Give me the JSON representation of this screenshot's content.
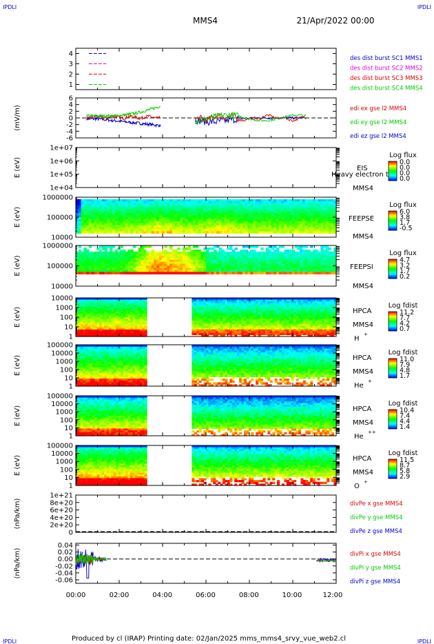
{
  "header": {
    "corner_left": "IPDLI",
    "corner_right": "IPDLI",
    "title": "MMS4",
    "date": "21/Apr/2022 00:00"
  },
  "footer": {
    "corner_left": "IPDLI",
    "corner_right": "IPDLI",
    "credit": "Produced by cl (IRAP)   Printing date: 02/Jan/2025   mms_mms4_srvy_vue_web2.cl"
  },
  "time_axis": {
    "range_hours": [
      0,
      12
    ],
    "tick_labels": [
      "00:00",
      "02:00",
      "04:00",
      "06:00",
      "08:00",
      "10:00",
      "12:00"
    ]
  },
  "colors": {
    "sc1": "#0000cc",
    "sc2": "#dd00dd",
    "sc3": "#dd0000",
    "sc4": "#00cc00",
    "ex": "#dd0000",
    "ey": "#00cc00",
    "ez": "#0000cc"
  },
  "chart_data": [
    {
      "type": "line",
      "panel": "burst",
      "yticks": [
        "4",
        "3",
        "2",
        "1"
      ],
      "ylim": [
        0.5,
        4.5
      ],
      "series": [
        {
          "name": "des dist burst SC1 MMS1",
          "level": 4,
          "color": "#0000cc",
          "intervals": [
            [
              0.6,
              1.4
            ]
          ]
        },
        {
          "name": "des dist burst SC2 MMS2",
          "level": 3,
          "color": "#dd00dd",
          "intervals": [
            [
              0.6,
              1.4
            ]
          ]
        },
        {
          "name": "des dist burst SC3 MMS3",
          "level": 2,
          "color": "#dd0000",
          "intervals": [
            [
              0.6,
              1.4
            ]
          ]
        },
        {
          "name": "des dist burst SC4 MMS4",
          "level": 1,
          "color": "#00cc00",
          "intervals": [
            [
              0.6,
              1.4
            ]
          ]
        }
      ],
      "legend": [
        "des dist burst SC1 MMS1",
        "des dist burst SC2 MMS2",
        "des dist burst SC3 MMS3",
        "des dist burst SC4 MMS4"
      ]
    },
    {
      "type": "line",
      "panel": "edi",
      "ylabel": "(mV/m)",
      "yticks": [
        "6",
        "4",
        "2",
        "0",
        "-2",
        "-4",
        "-6"
      ],
      "ylim": [
        -6,
        6
      ],
      "series": [
        {
          "name": "edi ex gse l2 MMS4",
          "color": "#dd0000"
        },
        {
          "name": "edi ey gse l2 MMS4",
          "color": "#00cc00"
        },
        {
          "name": "edi ez gse l2 MMS4",
          "color": "#0000cc"
        }
      ],
      "data_intervals_hours": [
        [
          0.5,
          3.9
        ],
        [
          5.5,
          10.6
        ]
      ]
    },
    {
      "type": "heatmap",
      "panel": "eis",
      "ylabel": "E (eV)",
      "yticks": [
        "1e+07",
        "1e+06",
        "1e+05",
        "1e+04"
      ],
      "instrument": "EIS",
      "overlay_text": "Heavy electron to",
      "spacecraft": "MMS4",
      "colorbar": {
        "title": "Log flux",
        "ticks": [
          "0.0",
          "0.0",
          "0.0",
          "0.0"
        ]
      },
      "data": "empty"
    },
    {
      "type": "heatmap",
      "panel": "feepse",
      "ylabel": "E (eV)",
      "yticks": [
        "1000000",
        "100000",
        "10000"
      ],
      "instrument": "FEEPSE",
      "spacecraft": "MMS4",
      "colorbar": {
        "title": "Log flux",
        "ticks": [
          "6.0",
          "3.8",
          "1.7",
          "-0.5"
        ]
      },
      "data_intervals_hours": [
        [
          0.0,
          12.0
        ]
      ]
    },
    {
      "type": "heatmap",
      "panel": "feepsi",
      "ylabel": "E (eV)",
      "yticks": [
        "1000000",
        "100000",
        "10000"
      ],
      "instrument": "FEEPSI",
      "spacecraft": "MMS4",
      "colorbar": {
        "title": "Log flux",
        "ticks": [
          "4.7",
          "3.2",
          "1.7",
          "0.2"
        ]
      },
      "data_intervals_hours": [
        [
          0.0,
          12.0
        ]
      ]
    },
    {
      "type": "heatmap",
      "panel": "hpca_h",
      "ylabel": "E (eV)",
      "yticks": [
        "10000",
        "1000",
        "100",
        "10",
        "1"
      ],
      "instrument": "HPCA",
      "spacecraft": "MMS4",
      "species": "H",
      "charge": "+",
      "colorbar": {
        "title": "Log fdist",
        "ticks": [
          "11.2",
          "7.7",
          "4.2",
          "0.7"
        ]
      },
      "data_intervals_hours": [
        [
          0.0,
          3.3
        ],
        [
          5.3,
          12.0
        ]
      ]
    },
    {
      "type": "heatmap",
      "panel": "hpca_he",
      "ylabel": "E (eV)",
      "yticks": [
        "100000",
        "10000",
        "1000",
        "100",
        "10",
        "1"
      ],
      "instrument": "HPCA",
      "spacecraft": "MMS4",
      "species": "He",
      "charge": "+",
      "colorbar": {
        "title": "Log fdist",
        "ticks": [
          "11.0",
          "7.9",
          "4.8",
          "1.7"
        ]
      },
      "data_intervals_hours": [
        [
          0.0,
          3.3
        ],
        [
          5.3,
          12.0
        ]
      ]
    },
    {
      "type": "heatmap",
      "panel": "hpca_hepp",
      "ylabel": "E (eV)",
      "yticks": [
        "100000",
        "10000",
        "1000",
        "100",
        "10",
        "1"
      ],
      "instrument": "HPCA",
      "spacecraft": "MMS4",
      "species": "He",
      "charge": "++",
      "colorbar": {
        "title": "Log fdist",
        "ticks": [
          "10.4",
          "7.4",
          "4.4",
          "1.4"
        ]
      },
      "data_intervals_hours": [
        [
          0.0,
          3.3
        ],
        [
          5.3,
          12.0
        ]
      ]
    },
    {
      "type": "heatmap",
      "panel": "hpca_o",
      "ylabel": "E (eV)",
      "yticks": [
        "100000",
        "10000",
        "1000",
        "100",
        "10",
        "1"
      ],
      "instrument": "HPCA",
      "spacecraft": "MMS4",
      "species": "O",
      "charge": "+",
      "colorbar": {
        "title": "Log fdist",
        "ticks": [
          "11.5",
          "8.7",
          "5.8",
          "2.9"
        ]
      },
      "data_intervals_hours": [
        [
          0.0,
          3.3
        ],
        [
          5.3,
          12.0
        ]
      ]
    },
    {
      "type": "line",
      "panel": "divpe",
      "ylabel": "(nPa/km)",
      "yticks": [
        "1e+21",
        "8e+20",
        "6e+20",
        "4e+20",
        "2e+20",
        "0"
      ],
      "ylim": [
        0,
        1e+21
      ],
      "series": [
        {
          "name": "divPe x gse MMS4",
          "color": "#dd0000"
        },
        {
          "name": "divPe y gse MMS4",
          "color": "#00cc00"
        },
        {
          "name": "divPe z gse MMS4",
          "color": "#0000cc"
        }
      ],
      "data": "empty"
    },
    {
      "type": "line",
      "panel": "divpi",
      "ylabel": "(nPa/km)",
      "yticks": [
        "0.04",
        "0.02",
        "0.00",
        "-0.02",
        "-0.04",
        "-0.06"
      ],
      "ylim": [
        -0.07,
        0.045
      ],
      "series": [
        {
          "name": "divPi x gse MMS4",
          "color": "#dd0000"
        },
        {
          "name": "divPi y gse MMS4",
          "color": "#00cc00"
        },
        {
          "name": "divPi z gse MMS4",
          "color": "#0000cc"
        }
      ],
      "data_intervals_hours": [
        [
          0.0,
          1.4
        ],
        [
          11.1,
          12.0
        ]
      ]
    }
  ]
}
